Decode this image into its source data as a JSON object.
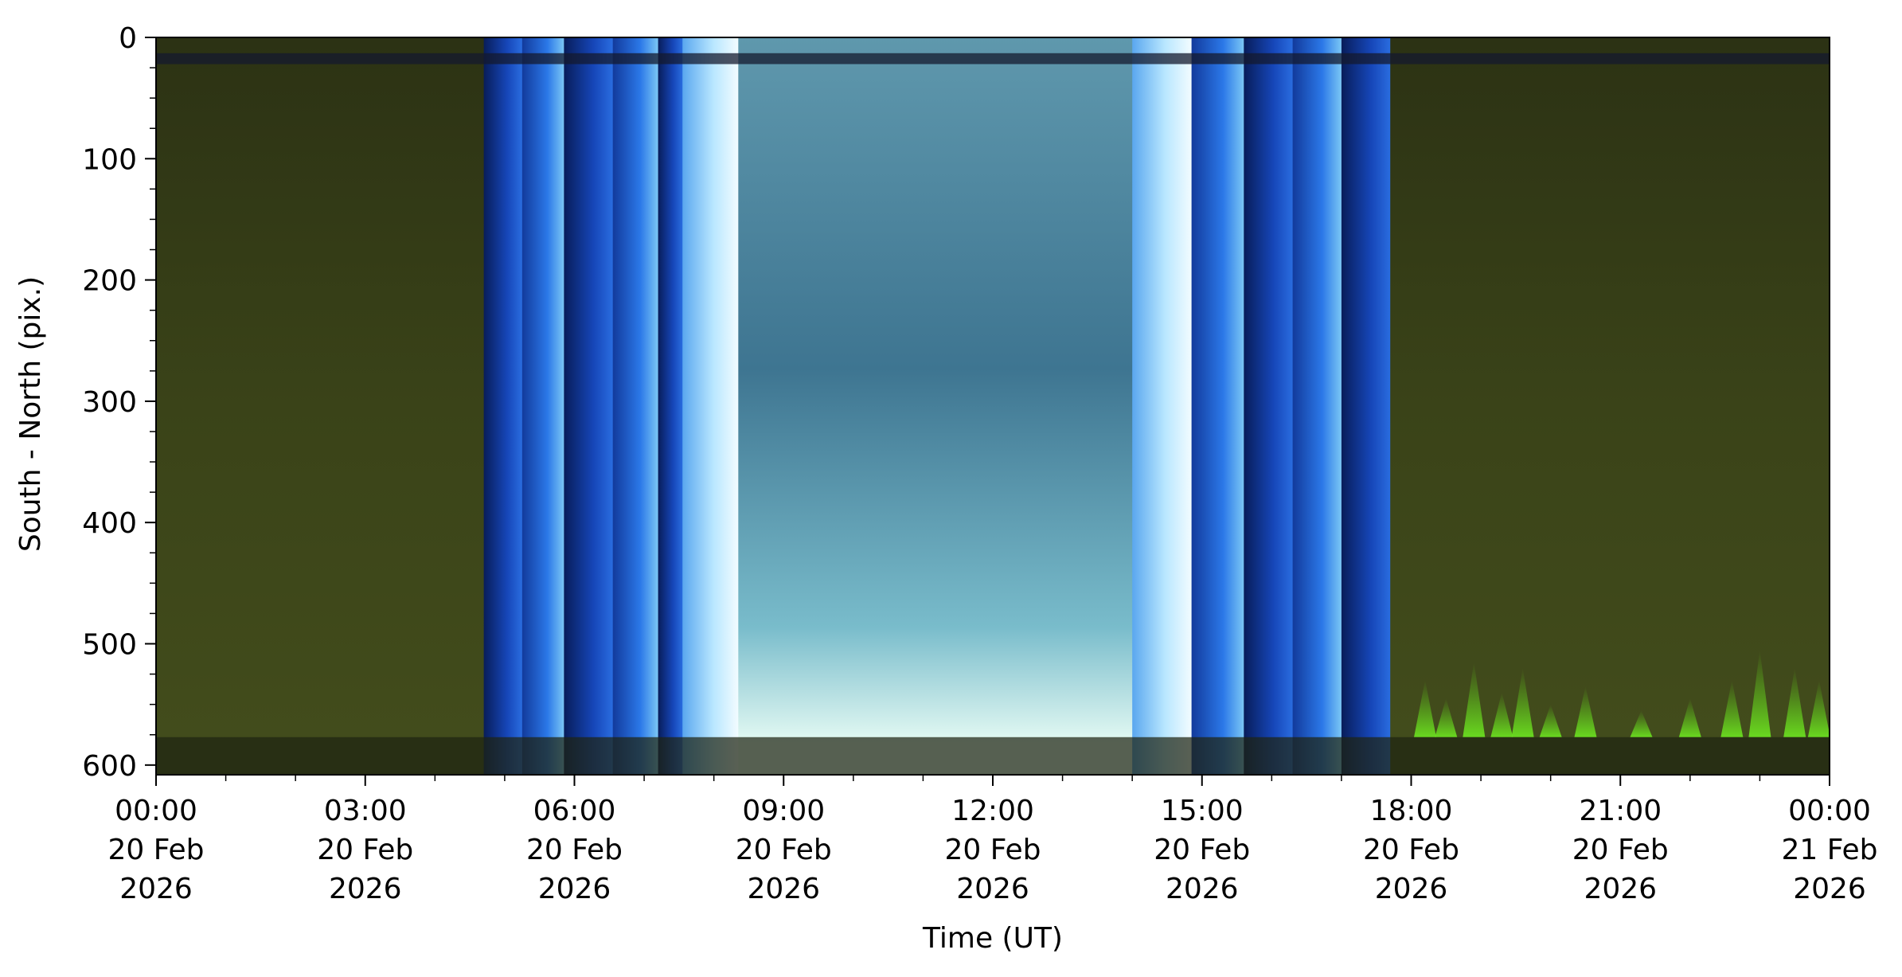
{
  "chart_data": {
    "type": "heatmap",
    "xlabel": "Time (UT)",
    "ylabel": "South - North (pix.)",
    "x_ticks": [
      {
        "time": "2026-02-20T00:00",
        "label": [
          "00:00",
          "20 Feb",
          "2026"
        ]
      },
      {
        "time": "2026-02-20T03:00",
        "label": [
          "03:00",
          "20 Feb",
          "2026"
        ]
      },
      {
        "time": "2026-02-20T06:00",
        "label": [
          "06:00",
          "20 Feb",
          "2026"
        ]
      },
      {
        "time": "2026-02-20T09:00",
        "label": [
          "09:00",
          "20 Feb",
          "2026"
        ]
      },
      {
        "time": "2026-02-20T12:00",
        "label": [
          "12:00",
          "20 Feb",
          "2026"
        ]
      },
      {
        "time": "2026-02-20T15:00",
        "label": [
          "15:00",
          "20 Feb",
          "2026"
        ]
      },
      {
        "time": "2026-02-20T18:00",
        "label": [
          "18:00",
          "20 Feb",
          "2026"
        ]
      },
      {
        "time": "2026-02-20T21:00",
        "label": [
          "21:00",
          "20 Feb",
          "2026"
        ]
      },
      {
        "time": "2026-02-21T00:00",
        "label": [
          "00:00",
          "21 Feb",
          "2026"
        ]
      }
    ],
    "x_range": [
      "2026-02-20T00:00",
      "2026-02-21T00:00"
    ],
    "y_ticks": [
      0,
      100,
      200,
      300,
      400,
      500,
      600
    ],
    "y_range": [
      608,
      0
    ],
    "y_inverted": true,
    "grid": false,
    "legend": "none",
    "colors": {
      "night": "#3a4318",
      "twilight_deep": "#0f2a78",
      "twilight_mid": "#1f5fd8",
      "twilight_bright": "#cfeeff",
      "day": "#5e9fb8",
      "aurora": "#5fcc1a"
    },
    "bands": [
      {
        "start": 0.0,
        "end": 4.7,
        "kind": "night"
      },
      {
        "start": 4.7,
        "end": 5.25,
        "kind": "twilight_deep"
      },
      {
        "start": 5.25,
        "end": 5.85,
        "kind": "twilight_mid"
      },
      {
        "start": 5.85,
        "end": 6.55,
        "kind": "twilight_deep"
      },
      {
        "start": 6.55,
        "end": 7.2,
        "kind": "twilight_mid"
      },
      {
        "start": 7.2,
        "end": 7.55,
        "kind": "twilight_deep"
      },
      {
        "start": 7.55,
        "end": 8.35,
        "kind": "twilight_bright"
      },
      {
        "start": 8.35,
        "end": 14.0,
        "kind": "day"
      },
      {
        "start": 14.0,
        "end": 14.85,
        "kind": "twilight_bright"
      },
      {
        "start": 14.85,
        "end": 15.6,
        "kind": "twilight_mid"
      },
      {
        "start": 15.6,
        "end": 16.3,
        "kind": "twilight_deep"
      },
      {
        "start": 16.3,
        "end": 17.0,
        "kind": "twilight_mid"
      },
      {
        "start": 17.0,
        "end": 17.7,
        "kind": "twilight_deep"
      },
      {
        "start": 17.7,
        "end": 24.0,
        "kind": "night"
      }
    ],
    "aurora": [
      {
        "t": 18.2,
        "top": 530
      },
      {
        "t": 18.5,
        "top": 545
      },
      {
        "t": 18.9,
        "top": 515
      },
      {
        "t": 19.3,
        "top": 540
      },
      {
        "t": 19.6,
        "top": 520
      },
      {
        "t": 20.0,
        "top": 550
      },
      {
        "t": 20.5,
        "top": 535
      },
      {
        "t": 21.3,
        "top": 555
      },
      {
        "t": 22.0,
        "top": 545
      },
      {
        "t": 22.6,
        "top": 530
      },
      {
        "t": 23.0,
        "top": 505
      },
      {
        "t": 23.5,
        "top": 520
      },
      {
        "t": 23.85,
        "top": 530
      }
    ]
  }
}
